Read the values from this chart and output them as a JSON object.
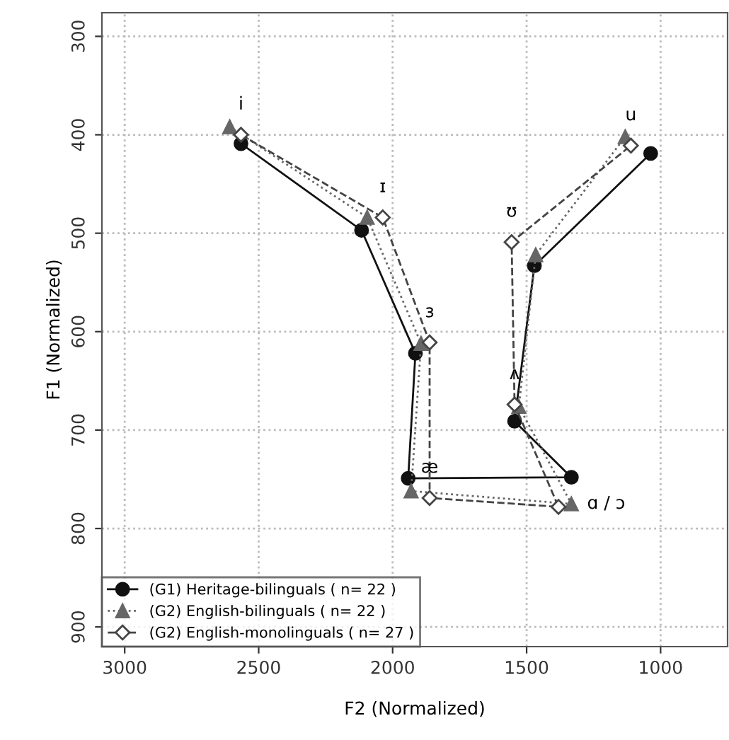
{
  "chart_data": {
    "type": "line",
    "xlabel": "F2 (Normalized)",
    "ylabel": "F1 (Normalized)",
    "xlim": [
      3085,
      750
    ],
    "xticks": [
      3000,
      2500,
      2000,
      1500,
      1000
    ],
    "ylim": [
      920,
      276
    ],
    "yticks": [
      300,
      400,
      500,
      600,
      700,
      800,
      900
    ],
    "grid": true,
    "legend": "bottom left",
    "series": [
      {
        "name": "(G1) Heritage-bilinguals ( n= 22 )",
        "color": "#111111",
        "marker": "circle",
        "line_style": "solid",
        "x": [
          2566,
          2116,
          1915,
          1942,
          1333,
          1545,
          1471,
          1037
        ],
        "values": [
          409,
          497,
          622,
          749,
          748,
          691,
          533,
          419
        ]
      },
      {
        "name": "(G2) English-bilinguals ( n= 22 )",
        "color": "#666666",
        "marker": "triangle",
        "line_style": "dotted",
        "x": [
          2608,
          2095,
          1894,
          1931,
          1333,
          1529,
          1466,
          1132
        ],
        "values": [
          392,
          484,
          612,
          762,
          775,
          676,
          522,
          402
        ]
      },
      {
        "name": "(G2) English-monolinguals ( n= 27 )",
        "color": "#444444",
        "marker": "diamond",
        "line_style": "dashed",
        "x": [
          2566,
          2037,
          1862,
          1862,
          1381,
          1545,
          1556,
          1111
        ],
        "values": [
          400,
          484,
          611,
          769,
          778,
          674,
          509,
          411
        ]
      }
    ],
    "annotations": [
      {
        "text": "i",
        "x": 2566,
        "y": 400
      },
      {
        "text": "ɪ",
        "x": 2037,
        "y": 484
      },
      {
        "text": "ɜ",
        "x": 1862,
        "y": 611
      },
      {
        "text": "æ",
        "x": 1862,
        "y": 769
      },
      {
        "text": "ɑ / ɔ",
        "x": 1333,
        "y": 775
      },
      {
        "text": "ʌ",
        "x": 1545,
        "y": 674
      },
      {
        "text": "ʊ",
        "x": 1556,
        "y": 509
      },
      {
        "text": "u",
        "x": 1111,
        "y": 411
      }
    ]
  }
}
